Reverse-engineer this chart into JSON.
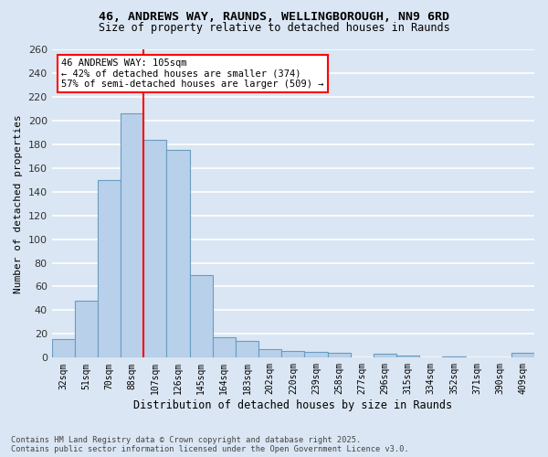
{
  "title_line1": "46, ANDREWS WAY, RAUNDS, WELLINGBOROUGH, NN9 6RD",
  "title_line2": "Size of property relative to detached houses in Raunds",
  "xlabel": "Distribution of detached houses by size in Raunds",
  "ylabel": "Number of detached properties",
  "footer_line1": "Contains HM Land Registry data © Crown copyright and database right 2025.",
  "footer_line2": "Contains public sector information licensed under the Open Government Licence v3.0.",
  "categories": [
    "32sqm",
    "51sqm",
    "70sqm",
    "88sqm",
    "107sqm",
    "126sqm",
    "145sqm",
    "164sqm",
    "183sqm",
    "202sqm",
    "220sqm",
    "239sqm",
    "258sqm",
    "277sqm",
    "296sqm",
    "315sqm",
    "334sqm",
    "352sqm",
    "371sqm",
    "390sqm",
    "409sqm"
  ],
  "values": [
    16,
    48,
    150,
    206,
    184,
    175,
    70,
    17,
    14,
    7,
    6,
    5,
    4,
    0,
    3,
    2,
    0,
    1,
    0,
    0,
    4
  ],
  "bar_color": "#b8d0ea",
  "bar_edge_color": "#6a9cc0",
  "bg_color": "#dae6f3",
  "grid_color": "#ffffff",
  "vline_x_index": 3.5,
  "vline_color": "red",
  "annotation_text": "46 ANDREWS WAY: 105sqm\n← 42% of detached houses are smaller (374)\n57% of semi-detached houses are larger (509) →",
  "annotation_box_color": "white",
  "annotation_box_edge_color": "red",
  "ylim": [
    0,
    260
  ],
  "yticks": [
    0,
    20,
    40,
    60,
    80,
    100,
    120,
    140,
    160,
    180,
    200,
    220,
    240,
    260
  ]
}
